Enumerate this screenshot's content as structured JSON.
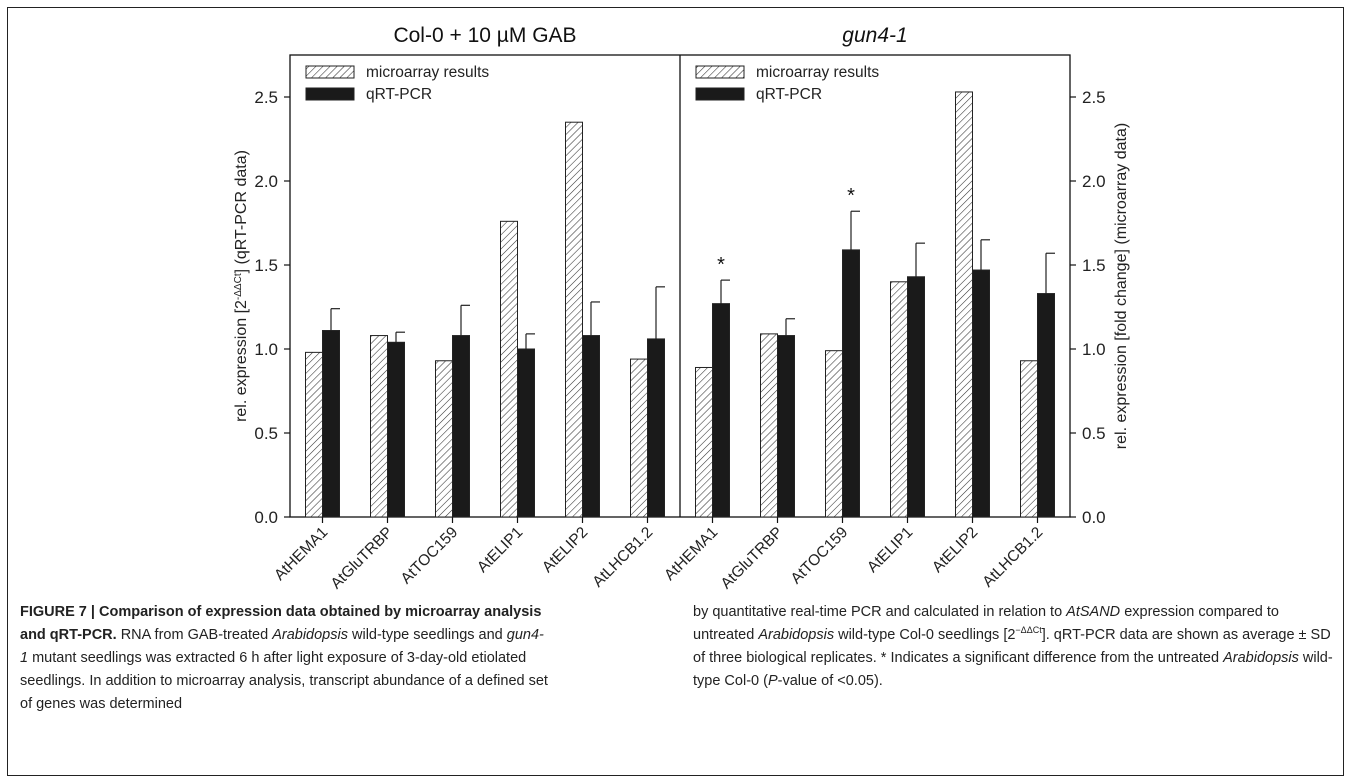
{
  "chart_data": {
    "type": "bar",
    "panels": [
      {
        "title": "Col-0 + 10 µM GAB",
        "title_italic": false,
        "categories": [
          "AtHEMA1",
          "AtGluTRBP",
          "AtTOC159",
          "AtELIP1",
          "AtELIP2",
          "AtLHCB1.2"
        ],
        "series": [
          {
            "name": "microarray results",
            "values": [
              0.98,
              1.08,
              0.93,
              1.76,
              2.35,
              0.94
            ]
          },
          {
            "name": "qRT-PCR",
            "values": [
              1.11,
              1.04,
              1.08,
              1.0,
              1.08,
              1.06
            ],
            "errors": [
              0.13,
              0.06,
              0.18,
              0.09,
              0.2,
              0.31
            ]
          }
        ],
        "significant": []
      },
      {
        "title": "gun4-1",
        "title_italic": true,
        "categories": [
          "AtHEMA1",
          "AtGluTRBP",
          "AtTOC159",
          "AtELIP1",
          "AtELIP2",
          "AtLHCB1.2"
        ],
        "series": [
          {
            "name": "microarray results",
            "values": [
              0.89,
              1.09,
              0.99,
              1.4,
              2.53,
              0.93
            ]
          },
          {
            "name": "qRT-PCR",
            "values": [
              1.27,
              1.08,
              1.59,
              1.43,
              1.47,
              1.33
            ],
            "errors": [
              0.14,
              0.1,
              0.23,
              0.2,
              0.18,
              0.24
            ]
          }
        ],
        "significant": [
          0,
          2
        ]
      }
    ],
    "significance_marker": "*",
    "ylim": [
      0,
      2.75
    ],
    "yticks": [
      "0.0",
      "0.5",
      "1.0",
      "1.5",
      "2.0",
      "2.5"
    ],
    "ylabel_left": "rel. expression [2",
    "ylabel_left_sup": "-ΔΔCt",
    "ylabel_left_tail": "]   (qRT-PCR data)",
    "ylabel_right": "rel. expression [fold change] (microarray data)",
    "legend": [
      "microarray results",
      "qRT-PCR"
    ],
    "legend_position": "top-left",
    "colors": {
      "microarray": "#ffffff",
      "qrtpcr": "#1a1a1a",
      "axis": "#111111"
    }
  },
  "caption": {
    "bold": "FIGURE 7 | Comparison of expression data obtained by microarray analysis and qRT-PCR.",
    "p1": " RNA from GAB-treated ",
    "p2": "Arabidopsis",
    "p3": " wild-type seedlings and ",
    "p4": "gun4-1",
    "p5": " mutant seedlings was extracted 6 h after light exposure of 3-day-old etiolated seedlings. In addition to microarray analysis, transcript abundance of a defined set of genes was determined",
    "r1": "by quantitative real-time PCR and calculated in relation to ",
    "r2": "AtSAND",
    "r3": " expression compared to untreated ",
    "r4": "Arabidopsis",
    "r5": " wild-type Col-0 seedlings [2",
    "r6": "−ΔΔCt",
    "r7": "]. qRT-PCR data are shown as average ± SD of three biological replicates. * Indicates a significant difference from the untreated ",
    "r8": "Arabidopsis",
    "r9": " wild-type Col-0 (",
    "r10": "P",
    "r11": "-value of <0.05)."
  }
}
